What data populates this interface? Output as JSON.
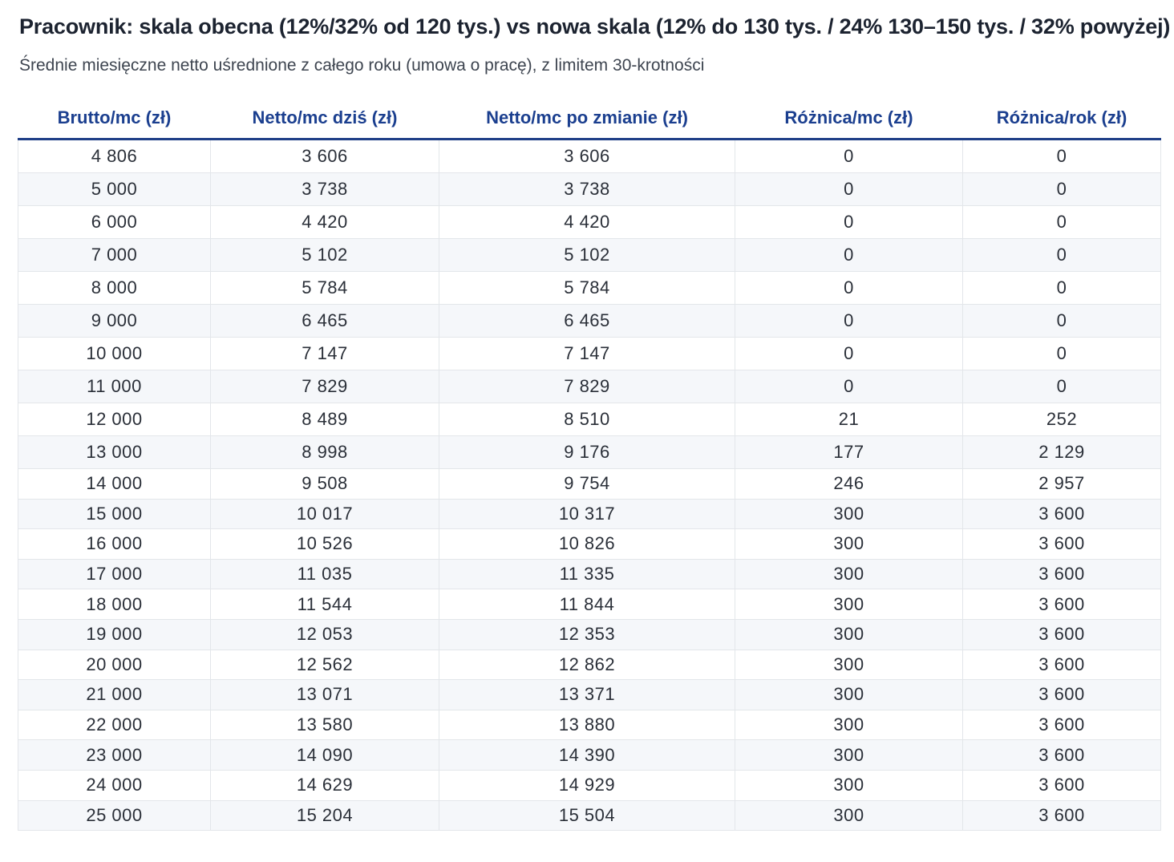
{
  "title": "Pracownik: skala obecna (12%/32% od 120 tys.) vs nowa skala (12% do 130 tys. / 24% 130–150 tys. / 32% powyżej)",
  "subtitle": "Średnie miesięczne netto uśrednione z całego roku (umowa o pracę), z limitem 30-krotności",
  "columns": [
    "Brutto/mc (zł)",
    "Netto/mc dziś (zł)",
    "Netto/mc po zmianie (zł)",
    "Różnica/mc (zł)",
    "Różnica/rok (zł)"
  ],
  "rows": [
    [
      "4 806",
      "3 606",
      "3 606",
      "0",
      "0"
    ],
    [
      "5 000",
      "3 738",
      "3 738",
      "0",
      "0"
    ],
    [
      "6 000",
      "4 420",
      "4 420",
      "0",
      "0"
    ],
    [
      "7 000",
      "5 102",
      "5 102",
      "0",
      "0"
    ],
    [
      "8 000",
      "5 784",
      "5 784",
      "0",
      "0"
    ],
    [
      "9 000",
      "6 465",
      "6 465",
      "0",
      "0"
    ],
    [
      "10 000",
      "7 147",
      "7 147",
      "0",
      "0"
    ],
    [
      "11 000",
      "7 829",
      "7 829",
      "0",
      "0"
    ],
    [
      "12 000",
      "8 489",
      "8 510",
      "21",
      "252"
    ],
    [
      "13 000",
      "8 998",
      "9 176",
      "177",
      "2 129"
    ],
    [
      "14 000",
      "9 508",
      "9 754",
      "246",
      "2 957"
    ],
    [
      "15 000",
      "10 017",
      "10 317",
      "300",
      "3 600"
    ],
    [
      "16 000",
      "10 526",
      "10 826",
      "300",
      "3 600"
    ],
    [
      "17 000",
      "11 035",
      "11 335",
      "300",
      "3 600"
    ],
    [
      "18 000",
      "11 544",
      "11 844",
      "300",
      "3 600"
    ],
    [
      "19 000",
      "12 053",
      "12 353",
      "300",
      "3 600"
    ],
    [
      "20 000",
      "12 562",
      "12 862",
      "300",
      "3 600"
    ],
    [
      "21 000",
      "13 071",
      "13 371",
      "300",
      "3 600"
    ],
    [
      "22 000",
      "13 580",
      "13 880",
      "300",
      "3 600"
    ],
    [
      "23 000",
      "14 090",
      "14 390",
      "300",
      "3 600"
    ],
    [
      "24 000",
      "14 629",
      "14 929",
      "300",
      "3 600"
    ],
    [
      "25 000",
      "15 204",
      "15 504",
      "300",
      "3 600"
    ]
  ]
}
